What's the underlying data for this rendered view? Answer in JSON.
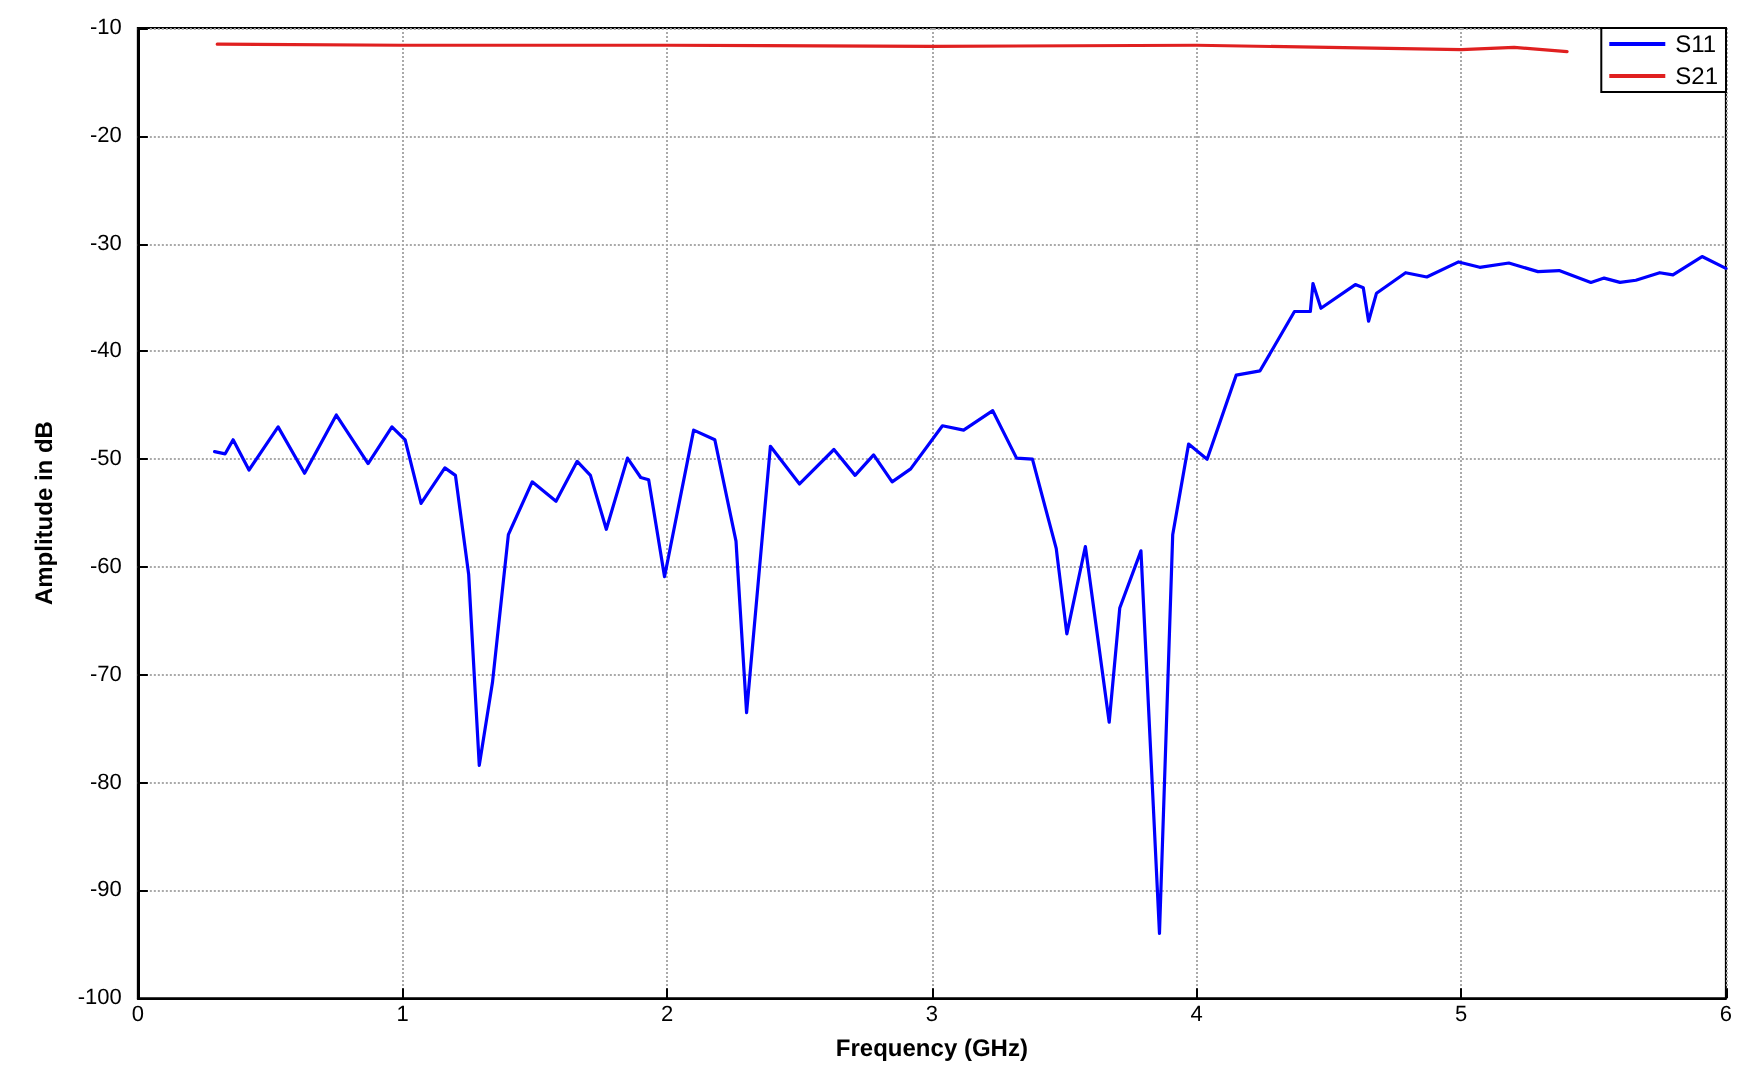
{
  "chart_data": {
    "type": "line",
    "xlabel": "Frequency (GHz)",
    "ylabel": "Amplitude in dB",
    "xlim": [
      0,
      6
    ],
    "xticks": [
      0,
      1,
      2,
      3,
      4,
      5,
      6
    ],
    "ylim": [
      -100,
      -10
    ],
    "yticks": [
      -100,
      -90,
      -80,
      -70,
      -60,
      -50,
      -40,
      -30,
      -20,
      -10
    ],
    "grid": true,
    "legend": "top right",
    "marker": "none",
    "line_style": "solid",
    "series": [
      {
        "name": "S11",
        "color": "#0000ff",
        "x": [
          0.29,
          0.33,
          0.36,
          0.42,
          0.53,
          0.63,
          0.75,
          0.87,
          0.96,
          1.01,
          1.07,
          1.16,
          1.2,
          1.25,
          1.29,
          1.34,
          1.4,
          1.49,
          1.58,
          1.66,
          1.71,
          1.77,
          1.85,
          1.9,
          1.93,
          1.99,
          2.1,
          2.18,
          2.26,
          2.3,
          2.39,
          2.5,
          2.63,
          2.71,
          2.78,
          2.85,
          2.92,
          3.04,
          3.12,
          3.23,
          3.32,
          3.38,
          3.47,
          3.51,
          3.58,
          3.67,
          3.71,
          3.79,
          3.86,
          3.91,
          3.97,
          4.04,
          4.15,
          4.24,
          4.37,
          4.43,
          4.44,
          4.47,
          4.6,
          4.63,
          4.65,
          4.68,
          4.79,
          4.87,
          4.99,
          5.07,
          5.18,
          5.29,
          5.37,
          5.49,
          5.54,
          5.6,
          5.66,
          5.75,
          5.8,
          5.91,
          6
        ],
        "values": [
          -49.3,
          -49.5,
          -48.2,
          -51,
          -47,
          -51.3,
          -45.9,
          -50.4,
          -47,
          -48.2,
          -54.1,
          -50.8,
          -51.5,
          -60.7,
          -78.4,
          -70.7,
          -57,
          -52.1,
          -53.9,
          -50.2,
          -51.5,
          -56.5,
          -49.9,
          -51.7,
          -51.9,
          -60.9,
          -47.3,
          -48.2,
          -57.6,
          -73.5,
          -48.8,
          -52.3,
          -49.1,
          -51.5,
          -49.6,
          -52.1,
          -50.9,
          -46.9,
          -47.3,
          -45.5,
          -49.9,
          -50,
          -58.3,
          -66.2,
          -58.1,
          -74.4,
          -63.8,
          -58.5,
          -94,
          -57,
          -48.6,
          -50,
          -42.2,
          -41.8,
          -36.3,
          -36.3,
          -33.7,
          -36,
          -33.8,
          -34.1,
          -37.2,
          -34.6,
          -32.7,
          -33.1,
          -31.7,
          -32.2,
          -31.8,
          -32.6,
          -32.5,
          -33.6,
          -33.2,
          -33.6,
          -33.4,
          -32.7,
          -32.9,
          -31.2,
          -32.3
        ]
      },
      {
        "name": "S21",
        "color": "#e02020",
        "x": [
          0.3,
          1,
          2,
          3,
          4,
          4.5,
          5,
          5.2,
          5.4
        ],
        "values": [
          -11.5,
          -11.6,
          -11.6,
          -11.7,
          -11.6,
          -11.8,
          -12,
          -11.8,
          -12.2
        ]
      }
    ]
  }
}
